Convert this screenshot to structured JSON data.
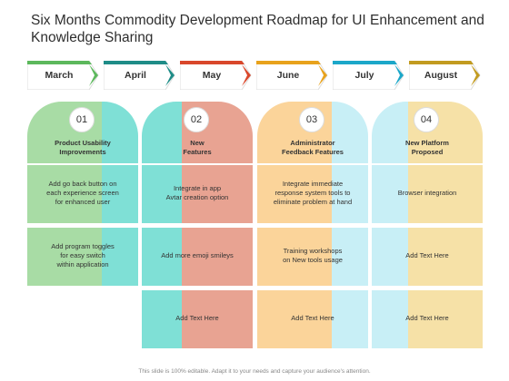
{
  "title": "Six Months Commodity Development Roadmap for UI Enhancement and Knowledge Sharing",
  "colors": {
    "green": "#a8dca5",
    "teal": "#7fe0d6",
    "salmon": "#e8a392",
    "orange": "#fbd49a",
    "light_blue": "#c8eff6",
    "yellow": "#f6e1a7",
    "arrow_green": "#5cb85c",
    "arrow_teal": "#1e8c87",
    "arrow_red": "#d9472b",
    "arrow_orange": "#e8a21c",
    "arrow_blue": "#1ba7c9",
    "arrow_gold": "#c29b20"
  },
  "months": [
    "March",
    "April",
    "May",
    "June",
    "July",
    "August"
  ],
  "columns": [
    {
      "number": "01",
      "header": "Product Usability\nImprovements",
      "items": [
        "Add go back button on\neach experience screen\nfor enhanced user",
        "Add program toggles\nfor  easy switch\nwithin application"
      ]
    },
    {
      "number": "02",
      "header": "New\nFeatures",
      "items": [
        "Integrate in app\nAvtar creation option",
        "Add more emoji smileys",
        "Add Text Here"
      ]
    },
    {
      "number": "03",
      "header": "Administrator\nFeedback Features",
      "items": [
        "Integrate immediate\nresponse system tools to\neliminate problem at hand",
        "Training workshops\non New  tools usage",
        "Add Text Here"
      ]
    },
    {
      "number": "04",
      "header": "New Platform\nProposed",
      "items": [
        "Browser integration",
        "Add Text Here",
        "Add Text Here"
      ]
    }
  ],
  "footer": "This slide is 100% editable. Adapt it to your needs and capture your audience's attention."
}
